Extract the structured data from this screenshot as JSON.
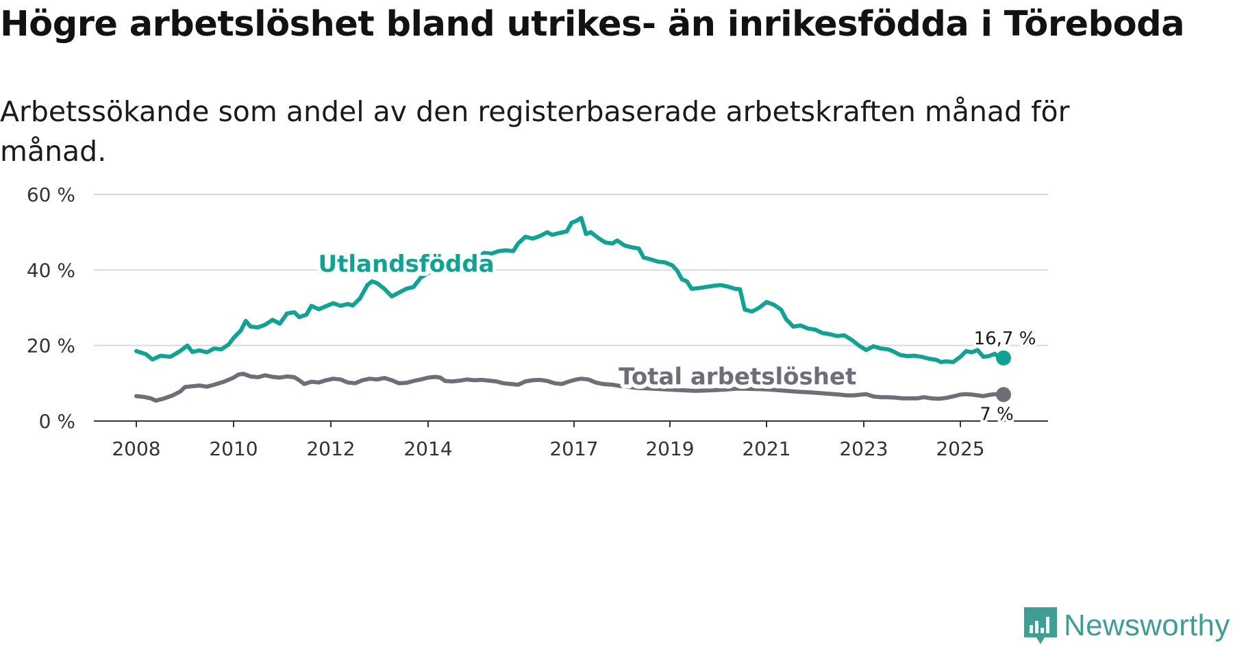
{
  "title": "Högre arbetslöshet bland utrikes- än inrikesfödda i Töreboda",
  "subtitle": "Arbetssökande som andel av den registerbaserade arbetskraften månad för månad.",
  "brand": {
    "name": "Newsworthy",
    "icon": "newsworthy-logo-icon",
    "color": "#3f9e93"
  },
  "chart_data": {
    "type": "line",
    "title": "Högre arbetslöshet bland utrikes- än inrikesfödda i Töreboda",
    "xlabel": "",
    "ylabel": "",
    "ylim": [
      0,
      60
    ],
    "yticks": [
      0,
      20,
      40,
      60
    ],
    "ytick_labels": [
      "0 %",
      "20 %",
      "40 %",
      "60 %"
    ],
    "xticks": [
      2008,
      2010,
      2012,
      2014,
      2017,
      2019,
      2021,
      2023,
      2025
    ],
    "xtick_labels": [
      "2008",
      "2010",
      "2012",
      "2014",
      "2017",
      "2019",
      "2021",
      "2023",
      "2025"
    ],
    "grid": true,
    "series": [
      {
        "name": "Utlandsfödda",
        "color": "#12a294",
        "end_label": "16,7 %",
        "points": [
          [
            2008.0,
            18.5
          ],
          [
            2008.2,
            17.7
          ],
          [
            2008.33,
            16.3
          ],
          [
            2008.5,
            17.3
          ],
          [
            2008.7,
            17.0
          ],
          [
            2008.9,
            18.5
          ],
          [
            2009.05,
            20.0
          ],
          [
            2009.15,
            18.3
          ],
          [
            2009.3,
            18.7
          ],
          [
            2009.45,
            18.2
          ],
          [
            2009.6,
            19.2
          ],
          [
            2009.75,
            19.0
          ],
          [
            2009.9,
            20.3
          ],
          [
            2010.0,
            22.0
          ],
          [
            2010.15,
            24.0
          ],
          [
            2010.25,
            26.5
          ],
          [
            2010.35,
            25.0
          ],
          [
            2010.5,
            24.8
          ],
          [
            2010.65,
            25.5
          ],
          [
            2010.8,
            26.8
          ],
          [
            2010.95,
            25.8
          ],
          [
            2011.1,
            28.5
          ],
          [
            2011.25,
            28.8
          ],
          [
            2011.35,
            27.5
          ],
          [
            2011.5,
            28.2
          ],
          [
            2011.6,
            30.5
          ],
          [
            2011.75,
            29.6
          ],
          [
            2011.9,
            30.4
          ],
          [
            2012.05,
            31.2
          ],
          [
            2012.2,
            30.5
          ],
          [
            2012.35,
            31.0
          ],
          [
            2012.45,
            30.6
          ],
          [
            2012.6,
            32.5
          ],
          [
            2012.75,
            36.0
          ],
          [
            2012.85,
            37.0
          ],
          [
            2012.95,
            36.5
          ],
          [
            2013.1,
            35.0
          ],
          [
            2013.25,
            33.0
          ],
          [
            2013.4,
            34.0
          ],
          [
            2013.55,
            35.0
          ],
          [
            2013.7,
            35.5
          ],
          [
            2013.85,
            38.0
          ],
          [
            2014.0,
            39.2
          ],
          [
            2014.2,
            40.0
          ],
          [
            2014.35,
            41.3
          ],
          [
            2014.55,
            42.5
          ],
          [
            2014.75,
            42.8
          ],
          [
            2014.9,
            43.5
          ],
          [
            2015.0,
            43.2
          ],
          [
            2015.15,
            44.5
          ],
          [
            2015.3,
            44.3
          ],
          [
            2015.45,
            45.0
          ],
          [
            2015.6,
            45.2
          ],
          [
            2015.75,
            45.0
          ],
          [
            2015.85,
            47.0
          ],
          [
            2016.0,
            48.8
          ],
          [
            2016.15,
            48.3
          ],
          [
            2016.3,
            49.0
          ],
          [
            2016.45,
            50.0
          ],
          [
            2016.55,
            49.3
          ],
          [
            2016.7,
            49.8
          ],
          [
            2016.85,
            50.2
          ],
          [
            2016.95,
            52.5
          ],
          [
            2017.05,
            53.0
          ],
          [
            2017.15,
            53.8
          ],
          [
            2017.25,
            49.5
          ],
          [
            2017.35,
            50.0
          ],
          [
            2017.5,
            48.5
          ],
          [
            2017.65,
            47.3
          ],
          [
            2017.8,
            47.0
          ],
          [
            2017.9,
            47.8
          ],
          [
            2018.05,
            46.5
          ],
          [
            2018.2,
            46.0
          ],
          [
            2018.35,
            45.7
          ],
          [
            2018.45,
            43.3
          ],
          [
            2018.6,
            42.8
          ],
          [
            2018.75,
            42.2
          ],
          [
            2018.9,
            42.0
          ],
          [
            2019.05,
            41.2
          ],
          [
            2019.15,
            39.8
          ],
          [
            2019.25,
            37.5
          ],
          [
            2019.35,
            37.0
          ],
          [
            2019.45,
            35.0
          ],
          [
            2019.6,
            35.2
          ],
          [
            2019.75,
            35.5
          ],
          [
            2019.9,
            35.8
          ],
          [
            2020.05,
            36.0
          ],
          [
            2020.2,
            35.6
          ],
          [
            2020.35,
            35.0
          ],
          [
            2020.45,
            34.9
          ],
          [
            2020.55,
            29.5
          ],
          [
            2020.7,
            29.0
          ],
          [
            2020.85,
            30.0
          ],
          [
            2021.0,
            31.5
          ],
          [
            2021.15,
            30.8
          ],
          [
            2021.3,
            29.5
          ],
          [
            2021.4,
            27.0
          ],
          [
            2021.55,
            25.0
          ],
          [
            2021.7,
            25.3
          ],
          [
            2021.85,
            24.5
          ],
          [
            2022.0,
            24.2
          ],
          [
            2022.15,
            23.3
          ],
          [
            2022.3,
            23.0
          ],
          [
            2022.45,
            22.5
          ],
          [
            2022.6,
            22.7
          ],
          [
            2022.75,
            21.5
          ],
          [
            2022.9,
            20.0
          ],
          [
            2023.05,
            18.8
          ],
          [
            2023.2,
            19.8
          ],
          [
            2023.35,
            19.2
          ],
          [
            2023.5,
            19.0
          ],
          [
            2023.6,
            18.5
          ],
          [
            2023.75,
            17.5
          ],
          [
            2023.9,
            17.2
          ],
          [
            2024.05,
            17.3
          ],
          [
            2024.2,
            17.0
          ],
          [
            2024.35,
            16.5
          ],
          [
            2024.5,
            16.2
          ],
          [
            2024.6,
            15.6
          ],
          [
            2024.7,
            15.8
          ],
          [
            2024.85,
            15.6
          ],
          [
            2025.0,
            17.0
          ],
          [
            2025.15,
            18.5
          ],
          [
            2025.3,
            18.2
          ],
          [
            2025.45,
            18.8
          ],
          [
            2025.6,
            17.0
          ],
          [
            2025.75,
            17.2
          ],
          [
            2025.9,
            17.8
          ],
          [
            2026.0,
            17.0
          ],
          [
            2026.13,
            16.7
          ]
        ]
      },
      {
        "name": "Total arbetslöshet",
        "color": "#6e6e78",
        "end_label": "7 %",
        "points": [
          [
            2008.0,
            6.6
          ],
          [
            2008.15,
            6.4
          ],
          [
            2008.3,
            6.0
          ],
          [
            2008.4,
            5.4
          ],
          [
            2008.55,
            5.9
          ],
          [
            2008.75,
            6.8
          ],
          [
            2008.9,
            7.8
          ],
          [
            2009.0,
            9.0
          ],
          [
            2009.15,
            9.2
          ],
          [
            2009.3,
            9.4
          ],
          [
            2009.45,
            9.1
          ],
          [
            2009.6,
            9.6
          ],
          [
            2009.8,
            10.4
          ],
          [
            2010.0,
            11.5
          ],
          [
            2010.1,
            12.3
          ],
          [
            2010.2,
            12.5
          ],
          [
            2010.35,
            11.8
          ],
          [
            2010.5,
            11.6
          ],
          [
            2010.65,
            12.1
          ],
          [
            2010.8,
            11.7
          ],
          [
            2010.95,
            11.5
          ],
          [
            2011.1,
            11.8
          ],
          [
            2011.25,
            11.6
          ],
          [
            2011.35,
            10.8
          ],
          [
            2011.45,
            9.8
          ],
          [
            2011.6,
            10.4
          ],
          [
            2011.75,
            10.2
          ],
          [
            2011.9,
            10.8
          ],
          [
            2012.05,
            11.2
          ],
          [
            2012.2,
            11.0
          ],
          [
            2012.35,
            10.2
          ],
          [
            2012.5,
            10.0
          ],
          [
            2012.65,
            10.8
          ],
          [
            2012.8,
            11.2
          ],
          [
            2012.95,
            11.0
          ],
          [
            2013.1,
            11.4
          ],
          [
            2013.25,
            10.8
          ],
          [
            2013.4,
            10.0
          ],
          [
            2013.55,
            10.1
          ],
          [
            2013.7,
            10.6
          ],
          [
            2013.85,
            11.0
          ],
          [
            2014.0,
            11.5
          ],
          [
            2014.15,
            11.7
          ],
          [
            2014.25,
            11.5
          ],
          [
            2014.35,
            10.6
          ],
          [
            2014.5,
            10.5
          ],
          [
            2014.65,
            10.7
          ],
          [
            2014.8,
            11.0
          ],
          [
            2014.95,
            10.8
          ],
          [
            2015.1,
            10.9
          ],
          [
            2015.25,
            10.7
          ],
          [
            2015.4,
            10.5
          ],
          [
            2015.55,
            10.0
          ],
          [
            2015.7,
            9.8
          ],
          [
            2015.85,
            9.6
          ],
          [
            2016.0,
            10.5
          ],
          [
            2016.15,
            10.8
          ],
          [
            2016.3,
            10.9
          ],
          [
            2016.45,
            10.6
          ],
          [
            2016.6,
            10.0
          ],
          [
            2016.75,
            9.8
          ],
          [
            2016.9,
            10.5
          ],
          [
            2017.05,
            11.0
          ],
          [
            2017.15,
            11.2
          ],
          [
            2017.3,
            11.0
          ],
          [
            2017.45,
            10.2
          ],
          [
            2017.6,
            9.8
          ],
          [
            2017.8,
            9.6
          ],
          [
            2018.0,
            9.2
          ],
          [
            2018.3,
            8.8
          ],
          [
            2018.6,
            8.6
          ],
          [
            2018.9,
            8.4
          ],
          [
            2019.2,
            8.2
          ],
          [
            2019.5,
            8.0
          ],
          [
            2019.8,
            8.1
          ],
          [
            2020.1,
            8.3
          ],
          [
            2020.4,
            8.6
          ],
          [
            2020.7,
            8.5
          ],
          [
            2021.0,
            8.4
          ],
          [
            2021.3,
            8.1
          ],
          [
            2021.6,
            7.8
          ],
          [
            2021.9,
            7.6
          ],
          [
            2022.2,
            7.3
          ],
          [
            2022.5,
            7.0
          ],
          [
            2022.65,
            6.8
          ],
          [
            2022.8,
            6.8
          ],
          [
            2022.95,
            7.0
          ],
          [
            2023.05,
            7.1
          ],
          [
            2023.2,
            6.5
          ],
          [
            2023.35,
            6.3
          ],
          [
            2023.5,
            6.3
          ],
          [
            2023.65,
            6.2
          ],
          [
            2023.8,
            6.0
          ],
          [
            2023.95,
            6.0
          ],
          [
            2024.1,
            6.0
          ],
          [
            2024.25,
            6.3
          ],
          [
            2024.4,
            6.0
          ],
          [
            2024.55,
            5.9
          ],
          [
            2024.7,
            6.1
          ],
          [
            2024.85,
            6.5
          ],
          [
            2025.0,
            7.0
          ],
          [
            2025.15,
            7.1
          ],
          [
            2025.3,
            7.0
          ],
          [
            2025.45,
            6.8
          ],
          [
            2025.6,
            6.6
          ],
          [
            2025.75,
            6.9
          ],
          [
            2025.9,
            7.1
          ],
          [
            2026.0,
            7.0
          ],
          [
            2026.13,
            7.0
          ]
        ]
      }
    ],
    "annotations": [
      {
        "text": "Utlandsfödda",
        "series": 0,
        "x": 2013.55,
        "y": 39.5
      },
      {
        "text": "Total arbetslöshet",
        "series": 1,
        "x": 2020.4,
        "y": 9.7
      }
    ]
  }
}
